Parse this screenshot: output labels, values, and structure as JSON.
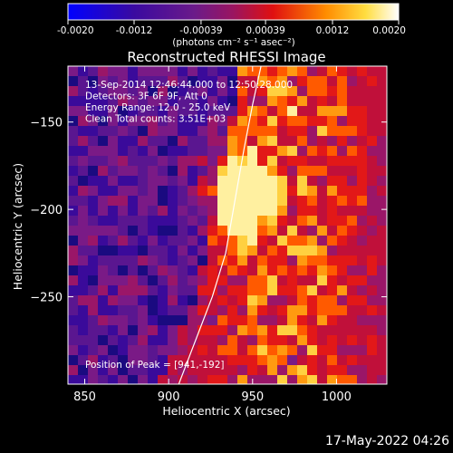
{
  "colorbar": {
    "tick_labels": [
      "-0.0020",
      "-0.0012",
      "-0.00039",
      "0.00039",
      "0.0012",
      "0.0020"
    ],
    "unit_label": "(photons cm⁻² s⁻¹ asec⁻²)",
    "range": [
      -0.002,
      0.002
    ],
    "colors": [
      "#0000ff",
      "#4b0082",
      "#8b1a8b",
      "#ff0000",
      "#ff8c00",
      "#ffff80",
      "#ffffff"
    ]
  },
  "chart_data": {
    "type": "heatmap",
    "title": "Reconstructed RHESSI Image",
    "xlabel": "Heliocentric X (arcsec)",
    "ylabel": "Heliocentric Y (arcsec)",
    "xlim": [
      840,
      1030
    ],
    "ylim": [
      -300,
      -118
    ],
    "x_ticks": [
      850,
      900,
      950,
      1000
    ],
    "y_ticks": [
      -150,
      -200,
      -250
    ],
    "annotations": [
      "13-Sep-2014 12:46:44.000 to 12:50:28.000",
      "Detectors: 3F 6F 9F, Att 0",
      "Energy Range: 12.0 - 25.0 keV",
      "Clean     Total counts: 3.51E+03"
    ],
    "peak_label": "Position of Peak = [941,-192]",
    "peak": [
      941,
      -192
    ],
    "limb_curve": [
      [
        906,
        -300
      ],
      [
        918,
        -270
      ],
      [
        926,
        -250
      ],
      [
        934,
        -225
      ],
      [
        940,
        -192
      ],
      [
        945,
        -165
      ],
      [
        950,
        -140
      ],
      [
        955,
        -118
      ]
    ]
  },
  "footer": {
    "timestamp": "17-May-2022 04:26"
  }
}
